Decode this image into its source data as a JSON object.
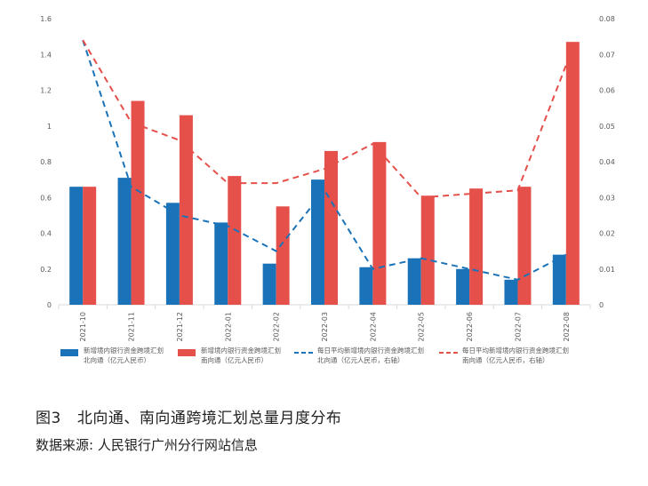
{
  "caption": {
    "figure_no": "图3",
    "title": "北向通、南向通跨境汇划总量月度分布"
  },
  "source": "数据来源: 人民银行广州分行网站信息",
  "chart_data": {
    "type": "bar",
    "categories": [
      "2021-10",
      "2021-11",
      "2021-12",
      "2022-01",
      "2022-02",
      "2022-03",
      "2022-04",
      "2022-05",
      "2022-06",
      "2022-07",
      "2022-08"
    ],
    "series": [
      {
        "name": "新增境内银行资金跨境汇划北向通（亿元人民币）",
        "type": "bar",
        "axis": "left",
        "color": "#1a73b8",
        "values": [
          0.66,
          0.71,
          0.57,
          0.46,
          0.23,
          0.7,
          0.21,
          0.26,
          0.2,
          0.14,
          0.28
        ]
      },
      {
        "name": "新增境内银行资金跨境汇划南向通（亿元人民币）",
        "type": "bar",
        "axis": "left",
        "color": "#e5504b",
        "values": [
          0.66,
          1.14,
          1.06,
          0.72,
          0.55,
          0.86,
          0.91,
          0.61,
          0.65,
          0.66,
          1.47
        ]
      },
      {
        "name": "每日平均新增境内银行资金跨境汇划北向通（亿元人民币，右轴）",
        "type": "line",
        "dash": "dashed",
        "axis": "right",
        "color": "#1a73b8",
        "values": [
          0.074,
          0.033,
          0.025,
          0.022,
          0.015,
          0.032,
          0.01,
          0.013,
          0.01,
          0.007,
          0.014
        ]
      },
      {
        "name": "每日平均新增境内银行资金跨境汇划南向通（亿元人民币，右轴）",
        "type": "line",
        "dash": "dashed",
        "axis": "right",
        "color": "#e5504b",
        "values": [
          0.074,
          0.051,
          0.046,
          0.034,
          0.034,
          0.038,
          0.045,
          0.03,
          0.031,
          0.032,
          0.067
        ]
      }
    ],
    "y_left": {
      "min": 0,
      "max": 1.6,
      "ticks": [
        "0",
        "0.2",
        "0.4",
        "0.6",
        "0.8",
        "1",
        "1.2",
        "1.4",
        "1.6"
      ]
    },
    "y_right": {
      "min": 0,
      "max": 0.08,
      "ticks": [
        "0",
        "0.01",
        "0.02",
        "0.03",
        "0.04",
        "0.05",
        "0.06",
        "0.07",
        "0.08"
      ]
    },
    "grid": false,
    "legend": {
      "placement": "bottom",
      "items": [
        {
          "line1": "新增境内银行资金跨境汇划",
          "line2": "北向通（亿元人民币）",
          "kind": "bar",
          "color": "#1a73b8"
        },
        {
          "line1": "新增境内银行资金跨境汇划",
          "line2": "南向通（亿元人民币）",
          "kind": "bar",
          "color": "#e5504b"
        },
        {
          "line1": "每日平均新增境内银行资金跨境汇划",
          "line2": "北向通（亿元人民币，右轴）",
          "kind": "dash",
          "color": "#1a73b8"
        },
        {
          "line1": "每日平均新增境内银行资金跨境汇划",
          "line2": "南向通（亿元人民币，右轴）",
          "kind": "dash",
          "color": "#e5504b"
        }
      ]
    }
  }
}
